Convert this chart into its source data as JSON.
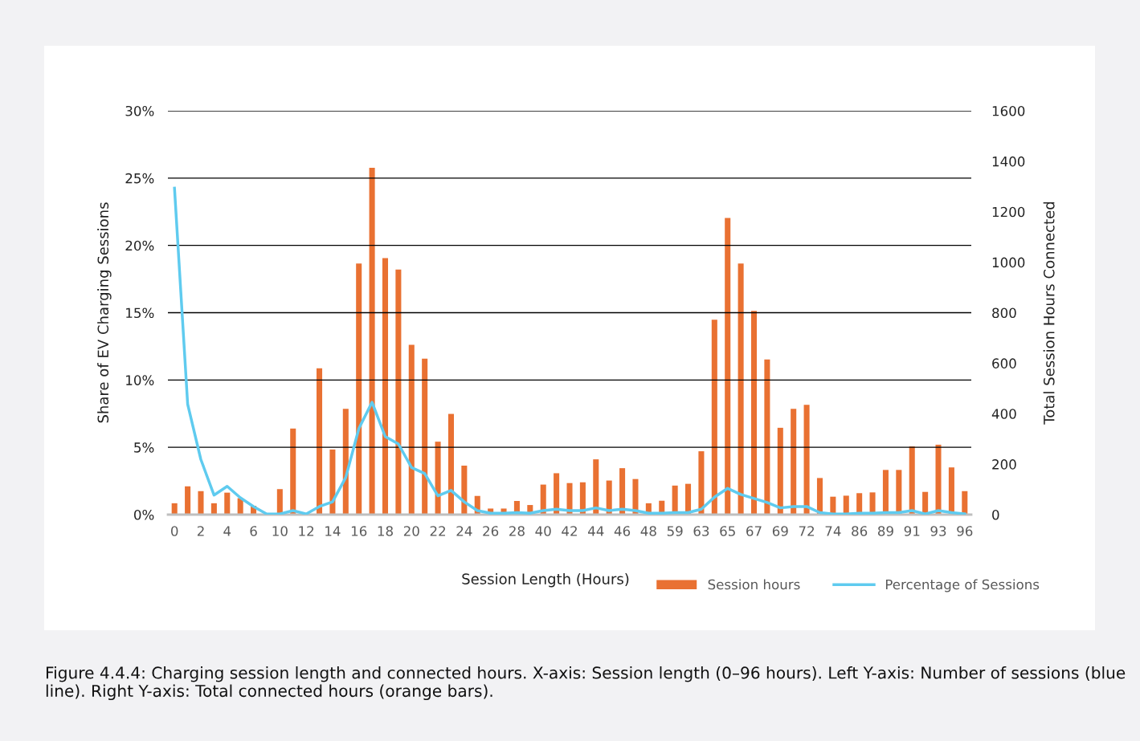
{
  "chart_data": {
    "type": "bar",
    "xlabel": "Session Length (Hours)",
    "ylabel": "Share of EV Charging Sessions",
    "y2label": "Total Session Hours Connected",
    "categories": [
      "0",
      null,
      "2",
      null,
      "4",
      null,
      "6",
      null,
      "10",
      null,
      "12",
      null,
      "14",
      null,
      "16",
      null,
      "18",
      null,
      "20",
      null,
      "22",
      null,
      "24",
      null,
      "26",
      null,
      "28",
      null,
      "40",
      null,
      "42",
      null,
      "44",
      null,
      "46",
      null,
      "48",
      null,
      "59",
      null,
      "63",
      null,
      "65",
      null,
      "67",
      null,
      "69",
      null,
      "72",
      null,
      "74",
      null,
      "86",
      null,
      "89",
      null,
      "91",
      null,
      "93",
      null,
      "96"
    ],
    "series": [
      {
        "name": "Session hours",
        "axis": "y2",
        "color": "#e97132",
        "values": [
          45,
          112,
          93,
          45,
          87,
          65,
          35,
          0,
          101,
          341,
          0,
          580,
          258,
          419,
          995,
          1374,
          1016,
          971,
          673,
          618,
          289,
          399,
          194,
          74,
          24,
          24,
          54,
          38,
          119,
          164,
          125,
          128,
          219,
          135,
          184,
          141,
          45,
          55,
          115,
          122,
          251,
          772,
          1175,
          995,
          807,
          615,
          344,
          419,
          435,
          145,
          71,
          75,
          85,
          88,
          177,
          177,
          270,
          90,
          277,
          187,
          93
        ]
      },
      {
        "name": "Percentage of Sessions",
        "type": "line",
        "color": "#5fcbef",
        "values": [
          24.25,
          8.2,
          4.1,
          1.45,
          2.1,
          1.25,
          0.6,
          0.05,
          0.05,
          0.3,
          0.05,
          0.6,
          0.95,
          2.75,
          6.4,
          8.35,
          5.8,
          5.25,
          3.5,
          3.05,
          1.4,
          1.8,
          0.95,
          0.3,
          0.1,
          0.1,
          0.15,
          0.1,
          0.3,
          0.4,
          0.3,
          0.3,
          0.5,
          0.3,
          0.4,
          0.3,
          0.1,
          0.1,
          0.15,
          0.15,
          0.4,
          1.3,
          1.95,
          1.5,
          1.2,
          0.9,
          0.5,
          0.6,
          0.6,
          0.15,
          0.05,
          0.05,
          0.1,
          0.1,
          0.15,
          0.15,
          0.3,
          0.05,
          0.3,
          0.15,
          0.05
        ]
      }
    ],
    "ylim": [
      0,
      30
    ],
    "yticks": [
      {
        "value": 0,
        "label": "0%"
      },
      {
        "value": 5,
        "label": "5%"
      },
      {
        "value": 10,
        "label": "10%"
      },
      {
        "value": 15,
        "label": "15%"
      },
      {
        "value": 20,
        "label": "20%"
      },
      {
        "value": 25,
        "label": "25%"
      },
      {
        "value": 30,
        "label": "30%"
      }
    ],
    "y2lim": [
      0,
      1600
    ],
    "y2ticks": [
      0,
      200,
      400,
      600,
      800,
      1000,
      1200,
      1400,
      1600
    ],
    "grid": "y",
    "legend": "bottom right",
    "annotations": [
      "Figure 4.4.4: Charging session length and connected hours. X-axis: Session length (0–96 hours). Left Y-axis: Number of sessions (blue line). Right Y-axis: Total connected hours (orange bars)."
    ]
  }
}
